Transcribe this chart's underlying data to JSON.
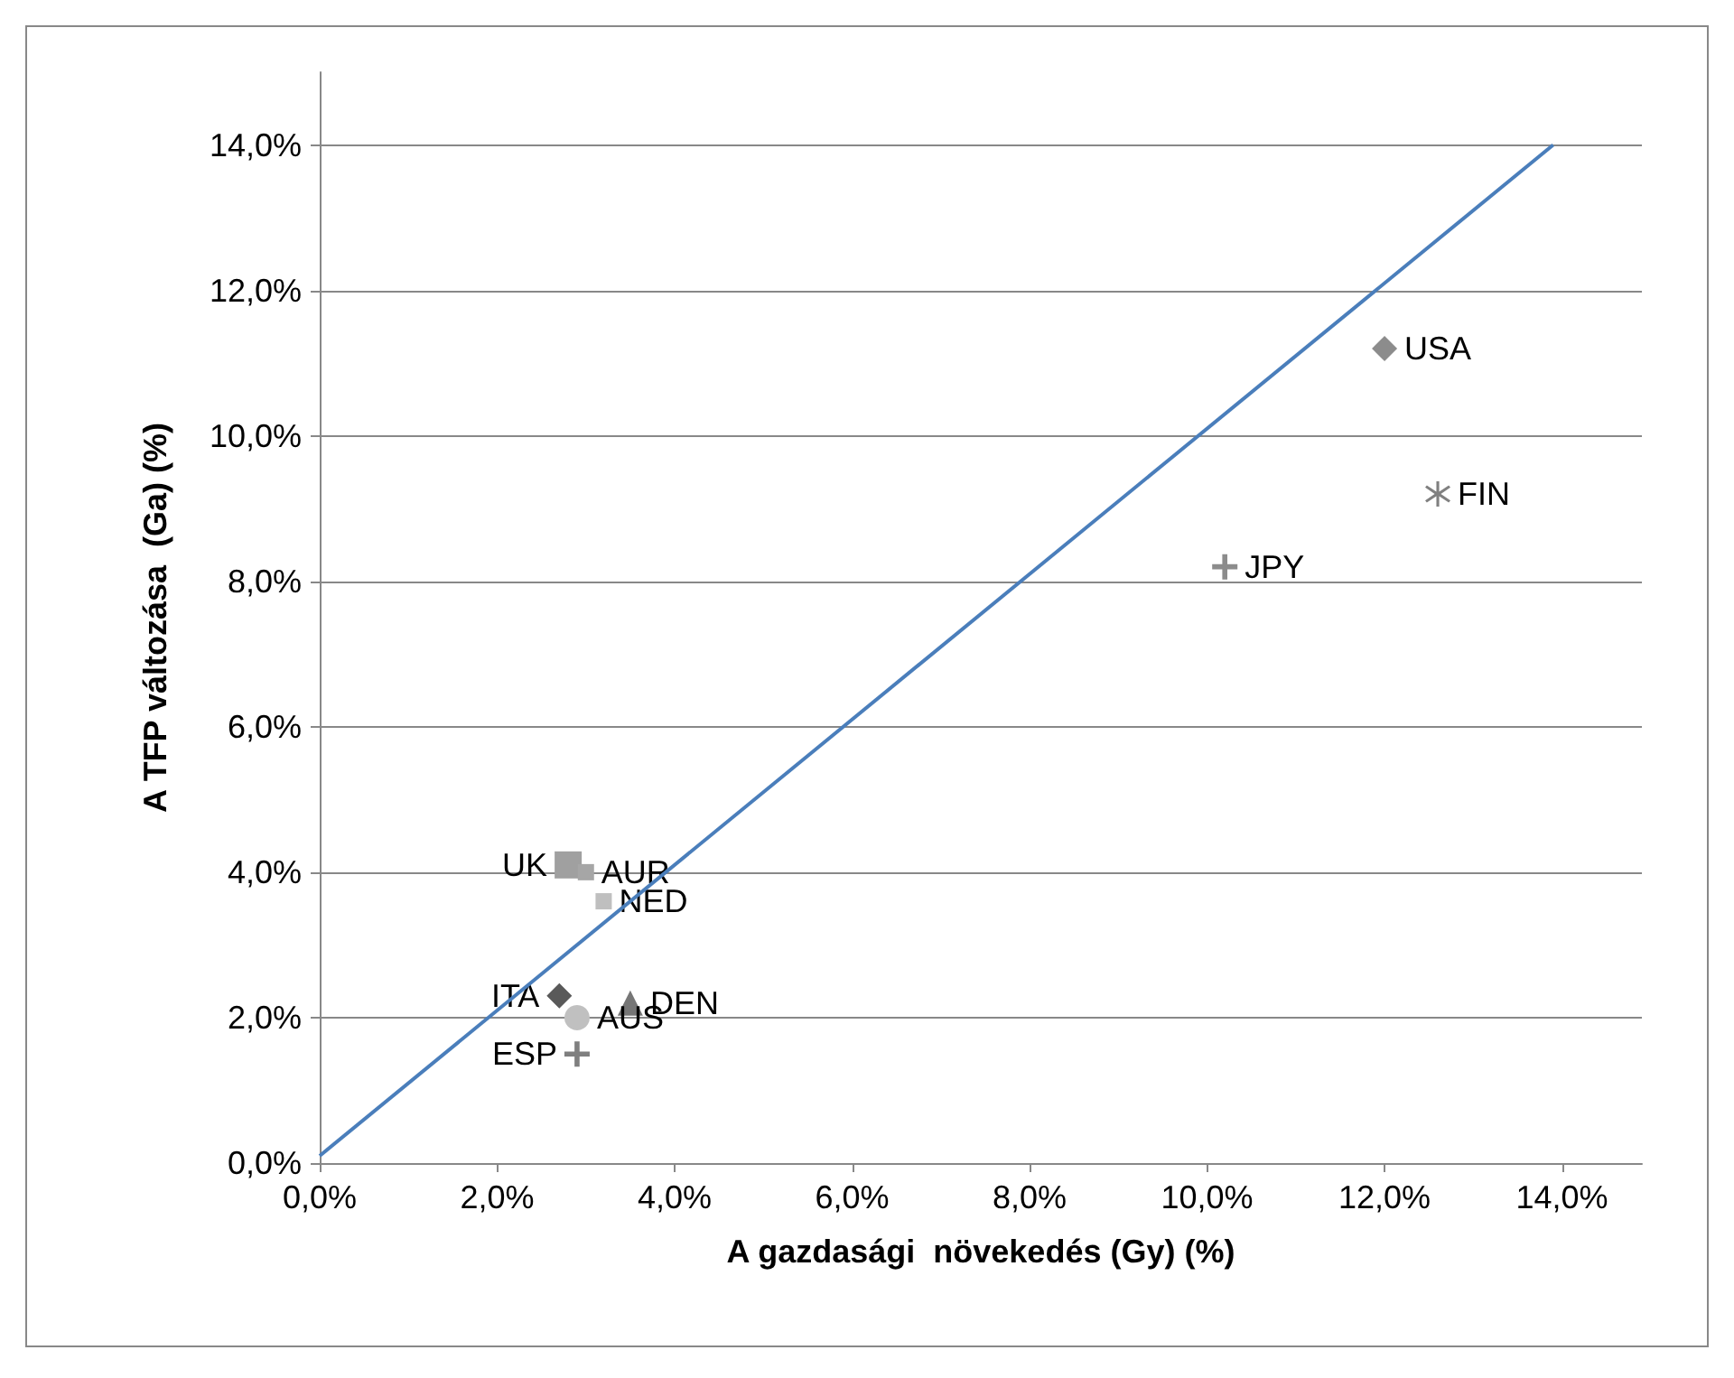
{
  "chart_data": {
    "type": "scatter",
    "xlabel": "A gazdasági  növekedés (Gy) (%)",
    "ylabel": "A TFP változása  (Ga) (%)",
    "xlim": [
      0,
      14.9
    ],
    "ylim": [
      0,
      15
    ],
    "xticks": [
      {
        "value": 0,
        "label": "0,0%"
      },
      {
        "value": 2,
        "label": "2,0%"
      },
      {
        "value": 4,
        "label": "4,0%"
      },
      {
        "value": 6,
        "label": "6,0%"
      },
      {
        "value": 8,
        "label": "8,0%"
      },
      {
        "value": 10,
        "label": "10,0%"
      },
      {
        "value": 12,
        "label": "12,0%"
      },
      {
        "value": 14,
        "label": "14,0%"
      }
    ],
    "yticks": [
      {
        "value": 0,
        "label": "0,0%"
      },
      {
        "value": 2,
        "label": "2,0%"
      },
      {
        "value": 4,
        "label": "4,0%"
      },
      {
        "value": 6,
        "label": "6,0%"
      },
      {
        "value": 8,
        "label": "8,0%"
      },
      {
        "value": 10,
        "label": "10,0%"
      },
      {
        "value": 12,
        "label": "12,0%"
      },
      {
        "value": 14,
        "label": "14,0%"
      }
    ],
    "grid": "y",
    "legend": false,
    "series": [
      {
        "name": "USA",
        "color": "#8c8c8c",
        "marker": "diamond",
        "x": [
          12.0
        ],
        "values": [
          11.2
        ]
      },
      {
        "name": "FIN",
        "color": "#808080",
        "marker": "star",
        "x": [
          12.6
        ],
        "values": [
          9.2
        ]
      },
      {
        "name": "JPY",
        "color": "#8c8c8c",
        "marker": "cross",
        "x": [
          10.2
        ],
        "values": [
          8.2
        ]
      },
      {
        "name": "UK",
        "color": "#a0a0a0",
        "marker": "square",
        "x": [
          2.8
        ],
        "values": [
          4.1
        ]
      },
      {
        "name": "AUR",
        "color": "#a6a6a6",
        "marker": "square",
        "x": [
          3.0
        ],
        "values": [
          4.0
        ]
      },
      {
        "name": "NED",
        "color": "#bfbfbf",
        "marker": "square",
        "x": [
          3.2
        ],
        "values": [
          3.6
        ]
      },
      {
        "name": "ITA",
        "color": "#595959",
        "marker": "diamond",
        "x": [
          2.7
        ],
        "values": [
          2.3
        ]
      },
      {
        "name": "ESP",
        "color": "#7f7f7f",
        "marker": "cross",
        "x": [
          2.9
        ],
        "values": [
          1.5
        ]
      },
      {
        "name": "AUS",
        "color": "#c0c0c0",
        "marker": "circle",
        "x": [
          2.9
        ],
        "values": [
          2.0
        ]
      },
      {
        "name": "DEN",
        "color": "#767676",
        "marker": "triangle",
        "x": [
          3.5
        ],
        "values": [
          2.2
        ]
      },
      {
        "type": "line",
        "color": "#4a7ebb",
        "marker": "none",
        "x": [
          0.0,
          13.9
        ],
        "values": [
          0.1,
          14.0
        ]
      }
    ]
  }
}
